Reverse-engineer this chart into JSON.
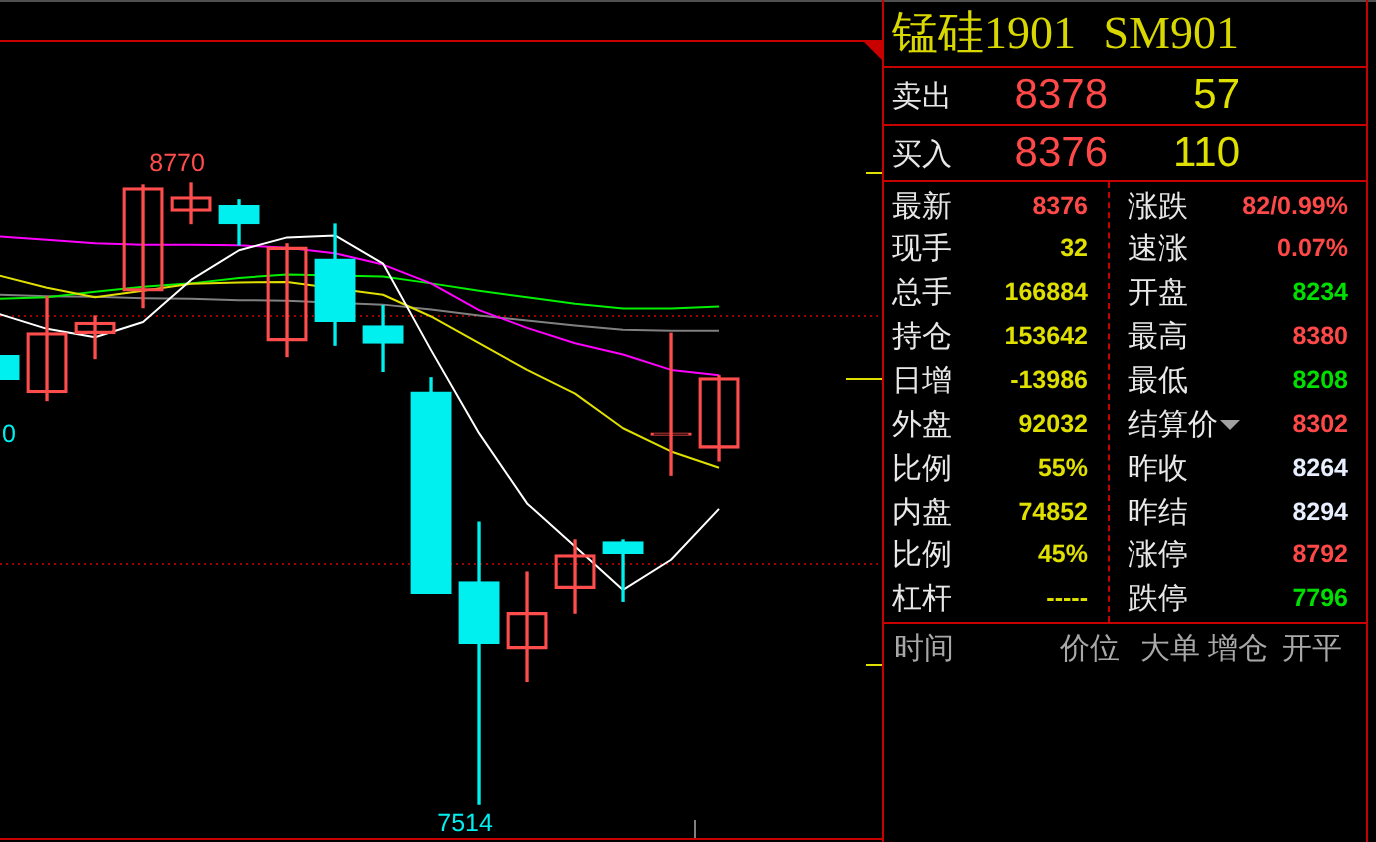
{
  "chart_data": [
    {
      "type": "candlestick",
      "categories": [
        null,
        null,
        null,
        null,
        null,
        null,
        null,
        null,
        null,
        null,
        null,
        null,
        null,
        null,
        null,
        null
      ],
      "ohlc": [
        [
          8421,
          8421,
          8373,
          8373
        ],
        [
          8346,
          8540,
          8330,
          8467
        ],
        [
          8466,
          8501,
          8415,
          8488
        ],
        [
          8552,
          8766,
          8518,
          8760
        ],
        [
          8713,
          8770,
          8688,
          8742
        ],
        [
          8724,
          8736,
          8645,
          8688
        ],
        [
          8451,
          8647,
          8419,
          8640
        ],
        [
          8616,
          8687,
          8442,
          8490
        ],
        [
          8481,
          8522,
          8389,
          8446
        ],
        [
          8347,
          8376,
          7940,
          7940
        ],
        [
          7963,
          8084,
          7514,
          7839
        ],
        [
          7828,
          7983,
          7762,
          7901
        ],
        [
          7950,
          8048,
          7900,
          8018
        ],
        [
          8044,
          8048,
          7924,
          8021
        ],
        [
          8260,
          8466,
          8179,
          8264
        ],
        [
          8234,
          8380,
          8208,
          8376
        ]
      ],
      "colors": [
        "#00f0f0",
        "#ff4c4c",
        "#ff4c4c",
        "#ff4c4c",
        "#ff4c4c",
        "#00f0f0",
        "#ff4c4c",
        "#00f0f0",
        "#00f0f0",
        "#00f0f0",
        "#00f0f0",
        "#ff4c4c",
        "#ff4c4c",
        "#00f0f0",
        "#ff4c4c",
        "#ff4c4c"
      ],
      "series": [
        {
          "type": "line",
          "color": "#ffffff",
          "values": [
            8505,
            8475,
            8458,
            8489,
            8574,
            8634,
            8660,
            8664,
            8607,
            8432,
            8264,
            8122,
            8035,
            7947,
            8008,
            8111
          ]
        },
        {
          "type": "line",
          "color": "#e0e000",
          "values": [
            8583,
            8558,
            8539,
            8552,
            8566,
            8569,
            8570,
            null,
            8544,
            8500,
            8446,
            8392,
            8344,
            8274,
            8227,
            8194
          ]
        },
        {
          "type": "line",
          "color": "#ff00ff",
          "values": [
            8662,
            8655,
            8648,
            8645,
            8645,
            8644,
            8639,
            8628,
            8605,
            8567,
            8513,
            8477,
            8446,
            8423,
            8392,
            8381
          ]
        },
        {
          "type": "line",
          "color": "#00f000",
          "values": [
            8536,
            8539,
            8550,
            8560,
            8567,
            8578,
            8585,
            null,
            8581,
            8567,
            8552,
            8539,
            8526,
            8516,
            8516,
            8520
          ]
        },
        {
          "type": "line",
          "color": "#808080",
          "values": [
            8544,
            8541,
            8540,
            8537,
            8536,
            8533,
            8532,
            null,
            8524,
            8514,
            8502,
            8492,
            8482,
            8473,
            8471,
            8471
          ]
        }
      ],
      "yticks": [
        {
          "value": 8000,
          "label": null
        },
        {
          "value": 8500,
          "label": null
        }
      ],
      "grid": "y",
      "tick_labels": false,
      "annotations": [
        "8770",
        "7514",
        "0"
      ]
    },
    {
      "type": "other",
      "title": "锰硅1901 SM901",
      "annotations": [
        "卖出",
        "8378",
        "57",
        "买入",
        "8376",
        "110",
        "最新",
        "8376",
        "涨跌",
        "82/0.99%",
        "现手",
        "32",
        "速涨",
        "0.07%",
        "总手",
        "166884",
        "开盘",
        "8234",
        "持仓",
        "153642",
        "最高",
        "8380",
        "日增",
        "-13986",
        "最低",
        "8208",
        "外盘",
        "92032",
        "结算价",
        "8302",
        "比例",
        "55%",
        "昨收",
        "8264",
        "内盘",
        "74852",
        "昨结",
        "8294",
        "比例",
        "45%",
        "涨停",
        "8792",
        "杠杆",
        "-----",
        "跌停",
        "7796",
        "时间",
        "价位",
        "大单",
        "增仓",
        "开平"
      ]
    }
  ]
}
